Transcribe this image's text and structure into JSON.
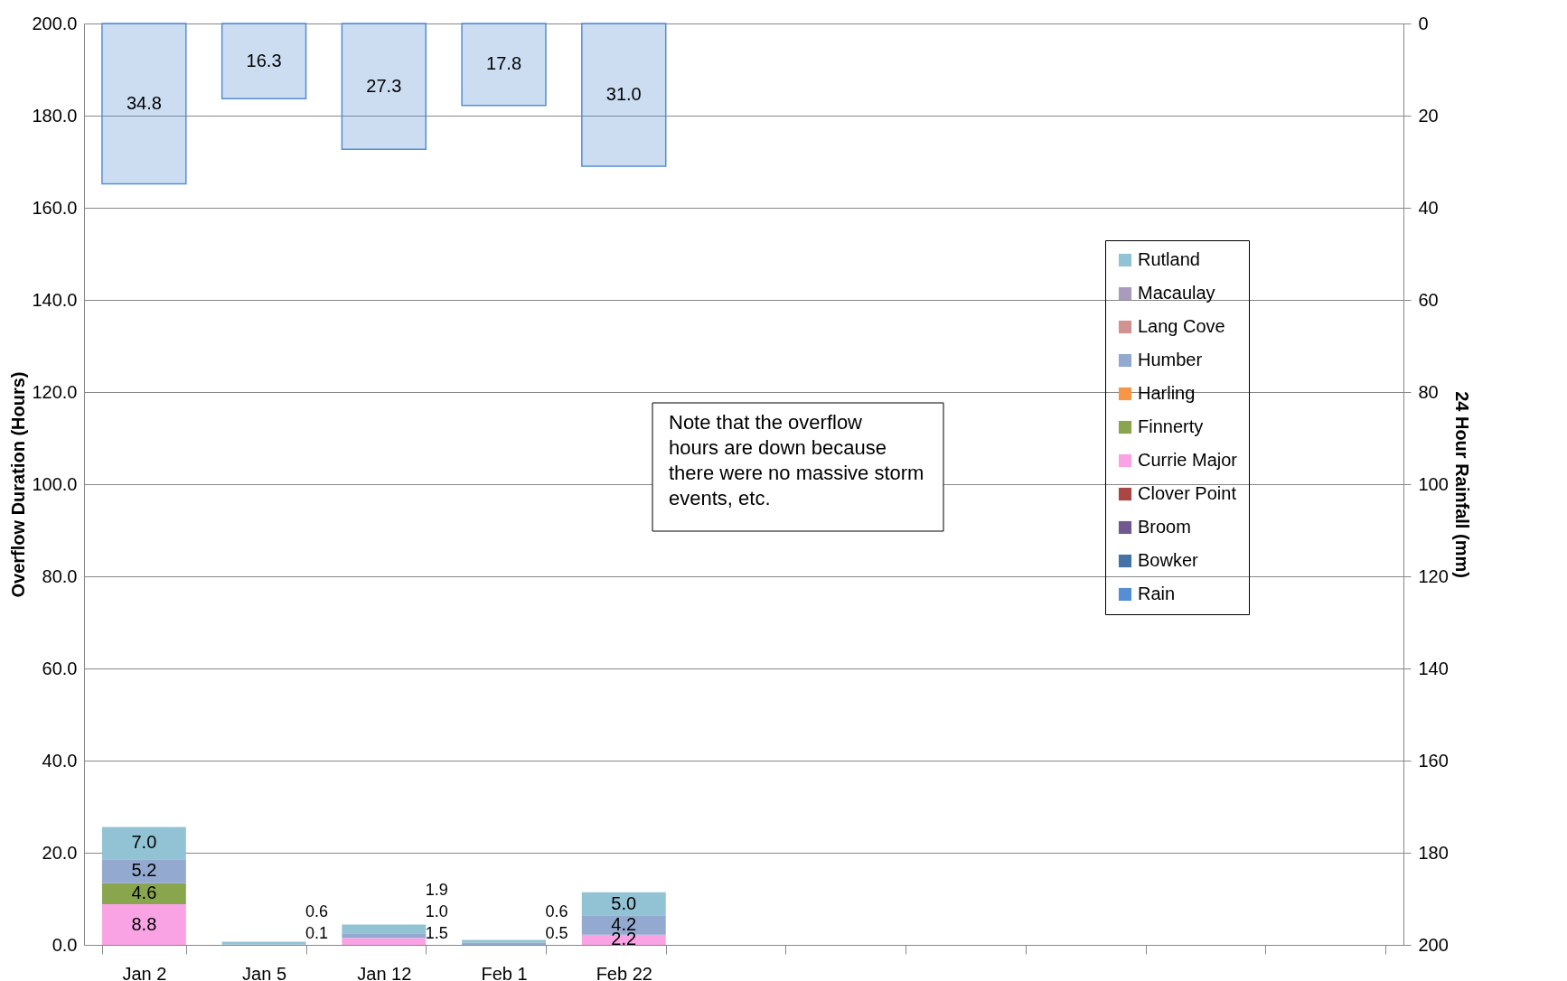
{
  "chart_data": {
    "type": "bar",
    "stacked": true,
    "grid": "y",
    "legend": "right",
    "ylabel": "Overflow Duration (Hours)",
    "y2label": "24 Hour Rainfall (mm)",
    "categories": [
      "Jan 2",
      "Jan 5",
      "Jan 12",
      "Feb 1",
      "Feb 22",
      null,
      null,
      null,
      null,
      null,
      null
    ],
    "ylim": [
      0,
      200
    ],
    "yticks": [
      {
        "value": 0,
        "label": "0.0"
      },
      {
        "value": 20,
        "label": "20.0"
      },
      {
        "value": 40,
        "label": "40.0"
      },
      {
        "value": 60,
        "label": "60.0"
      },
      {
        "value": 80,
        "label": "80.0"
      },
      {
        "value": 100,
        "label": "100.0"
      },
      {
        "value": 120,
        "label": "120.0"
      },
      {
        "value": 140,
        "label": "140.0"
      },
      {
        "value": 160,
        "label": "160.0"
      },
      {
        "value": 180,
        "label": "180.0"
      },
      {
        "value": 200,
        "label": "200.0"
      }
    ],
    "y2lim": [
      200,
      0
    ],
    "y2ticks": [
      0,
      20,
      40,
      60,
      80,
      100,
      120,
      140,
      160,
      180,
      200
    ],
    "series": [
      {
        "name": "Bowker",
        "color": "#4572a7",
        "values": [
          null,
          null,
          null,
          null,
          null,
          null,
          null,
          null,
          null,
          null,
          null
        ]
      },
      {
        "name": "Broom",
        "color": "#71588f",
        "values": [
          null,
          null,
          null,
          null,
          null,
          null,
          null,
          null,
          null,
          null,
          null
        ]
      },
      {
        "name": "Clover Point",
        "color": "#aa4643",
        "values": [
          null,
          null,
          null,
          null,
          null,
          null,
          null,
          null,
          null,
          null,
          null
        ]
      },
      {
        "name": "Currie Major",
        "color": "#f9a3e4",
        "values": [
          8.8,
          null,
          1.5,
          null,
          2.2,
          null,
          null,
          null,
          null,
          null,
          null
        ],
        "value_labels": [
          "8.8",
          null,
          "1.5",
          null,
          "2.2",
          null,
          null,
          null,
          null,
          null,
          null
        ]
      },
      {
        "name": "Finnerty",
        "color": "#89a54e",
        "values": [
          4.6,
          null,
          null,
          null,
          null,
          null,
          null,
          null,
          null,
          null,
          null
        ],
        "value_labels": [
          "4.6",
          null,
          null,
          null,
          null,
          null,
          null,
          null,
          null,
          null,
          null
        ]
      },
      {
        "name": "Harling",
        "color": "#f79646",
        "values": [
          null,
          null,
          null,
          null,
          null,
          null,
          null,
          null,
          null,
          null,
          null
        ]
      },
      {
        "name": "Humber",
        "color": "#93a9cf",
        "values": [
          5.2,
          0.1,
          1.0,
          0.5,
          4.2,
          null,
          null,
          null,
          null,
          null,
          null
        ],
        "value_labels": [
          "5.2",
          "0.1",
          "1.0",
          "0.5",
          "4.2",
          null,
          null,
          null,
          null,
          null,
          null
        ]
      },
      {
        "name": "Lang Cove",
        "color": "#d19392",
        "values": [
          null,
          null,
          null,
          null,
          null,
          null,
          null,
          null,
          null,
          null,
          null
        ]
      },
      {
        "name": "Macaulay",
        "color": "#a99bbd",
        "values": [
          null,
          null,
          null,
          null,
          null,
          null,
          null,
          null,
          null,
          null,
          null
        ]
      },
      {
        "name": "Rutland",
        "color": "#92c3d4",
        "values": [
          7.0,
          0.6,
          1.9,
          0.6,
          5.0,
          null,
          null,
          null,
          null,
          null,
          null
        ],
        "value_labels": [
          "7.0",
          "0.6",
          "1.9",
          "0.6",
          "5.0",
          null,
          null,
          null,
          null,
          null,
          null
        ]
      },
      {
        "name": "Rain",
        "color": "#558ed5",
        "axis": "y2",
        "values": [
          34.8,
          16.3,
          27.3,
          17.8,
          31.0,
          null,
          null,
          null,
          null,
          null,
          null
        ],
        "value_labels": [
          "34.8",
          "16.3",
          "27.3",
          "17.8",
          "31.0",
          null,
          null,
          null,
          null,
          null,
          null
        ]
      }
    ],
    "annotations": [
      "Note that the overflow hours are down because there were no massive storm events, etc."
    ]
  }
}
